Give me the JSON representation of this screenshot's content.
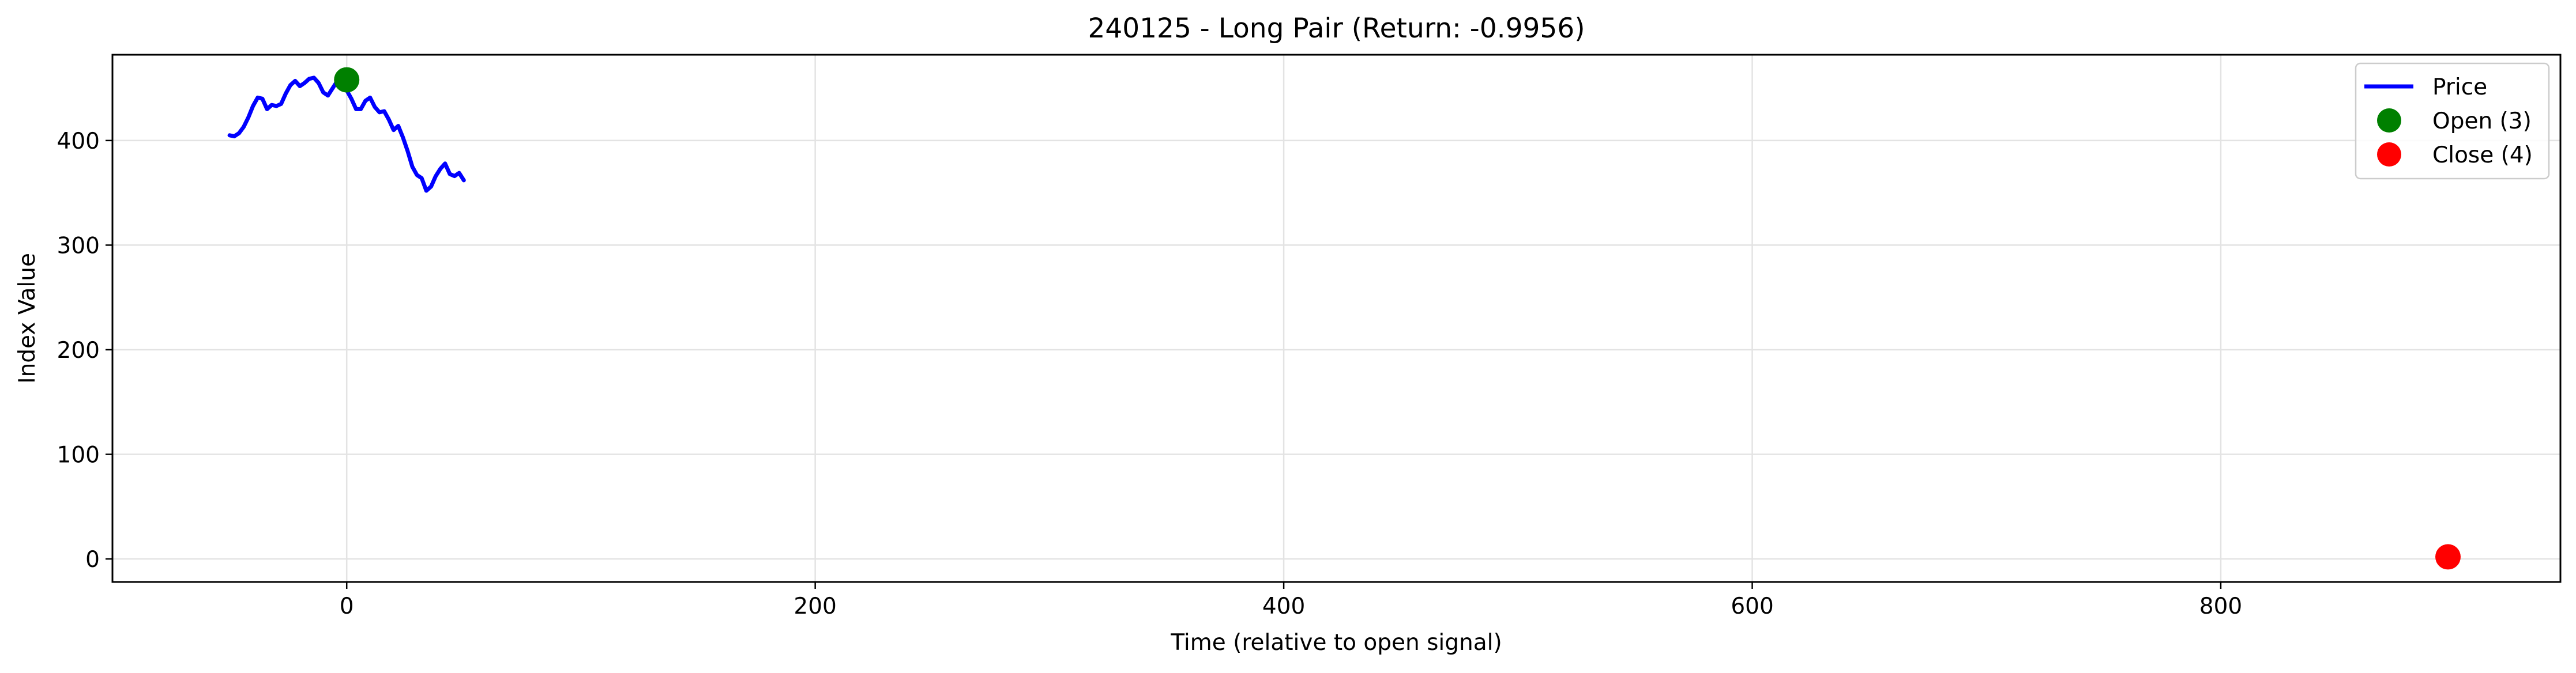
{
  "chart_data": {
    "type": "line",
    "title": "240125 - Long Pair (Return: -0.9956)",
    "xlabel": "Time (relative to open signal)",
    "ylabel": "Index Value",
    "xlim": [
      -100,
      945
    ],
    "ylim": [
      -22,
      482
    ],
    "x_ticks": [
      0,
      200,
      400,
      600,
      800
    ],
    "y_ticks": [
      0,
      100,
      200,
      300,
      400
    ],
    "grid": true,
    "legend_position": "top-right",
    "series": [
      {
        "name": "Price",
        "kind": "line",
        "color": "#0000ff",
        "x": [
          -50,
          -48,
          -46,
          -44,
          -42,
          -40,
          -38,
          -36,
          -34,
          -32,
          -30,
          -28,
          -26,
          -24,
          -22,
          -20,
          -18,
          -16,
          -14,
          -12,
          -10,
          -8,
          -6,
          -4,
          -2,
          0,
          2,
          4,
          6,
          8,
          10,
          12,
          14,
          16,
          18,
          20,
          22,
          24,
          26,
          28,
          30,
          32,
          34,
          36,
          38,
          40,
          42,
          44,
          46,
          48,
          50
        ],
        "y": [
          405,
          404,
          407,
          413,
          422,
          433,
          441,
          440,
          430,
          434,
          433,
          435,
          445,
          453,
          457,
          452,
          455,
          459,
          460,
          455,
          446,
          443,
          450,
          457,
          454,
          448,
          440,
          430,
          430,
          438,
          441,
          432,
          427,
          428,
          420,
          410,
          414,
          403,
          390,
          375,
          367,
          364,
          352,
          356,
          366,
          373,
          378,
          368,
          366,
          369,
          362
        ]
      },
      {
        "name": "Open (3)",
        "kind": "point",
        "color": "#008000",
        "x": [
          0
        ],
        "y": [
          458
        ]
      },
      {
        "name": "Close (4)",
        "kind": "point",
        "color": "#ff0000",
        "x": [
          897
        ],
        "y": [
          2
        ]
      }
    ]
  }
}
